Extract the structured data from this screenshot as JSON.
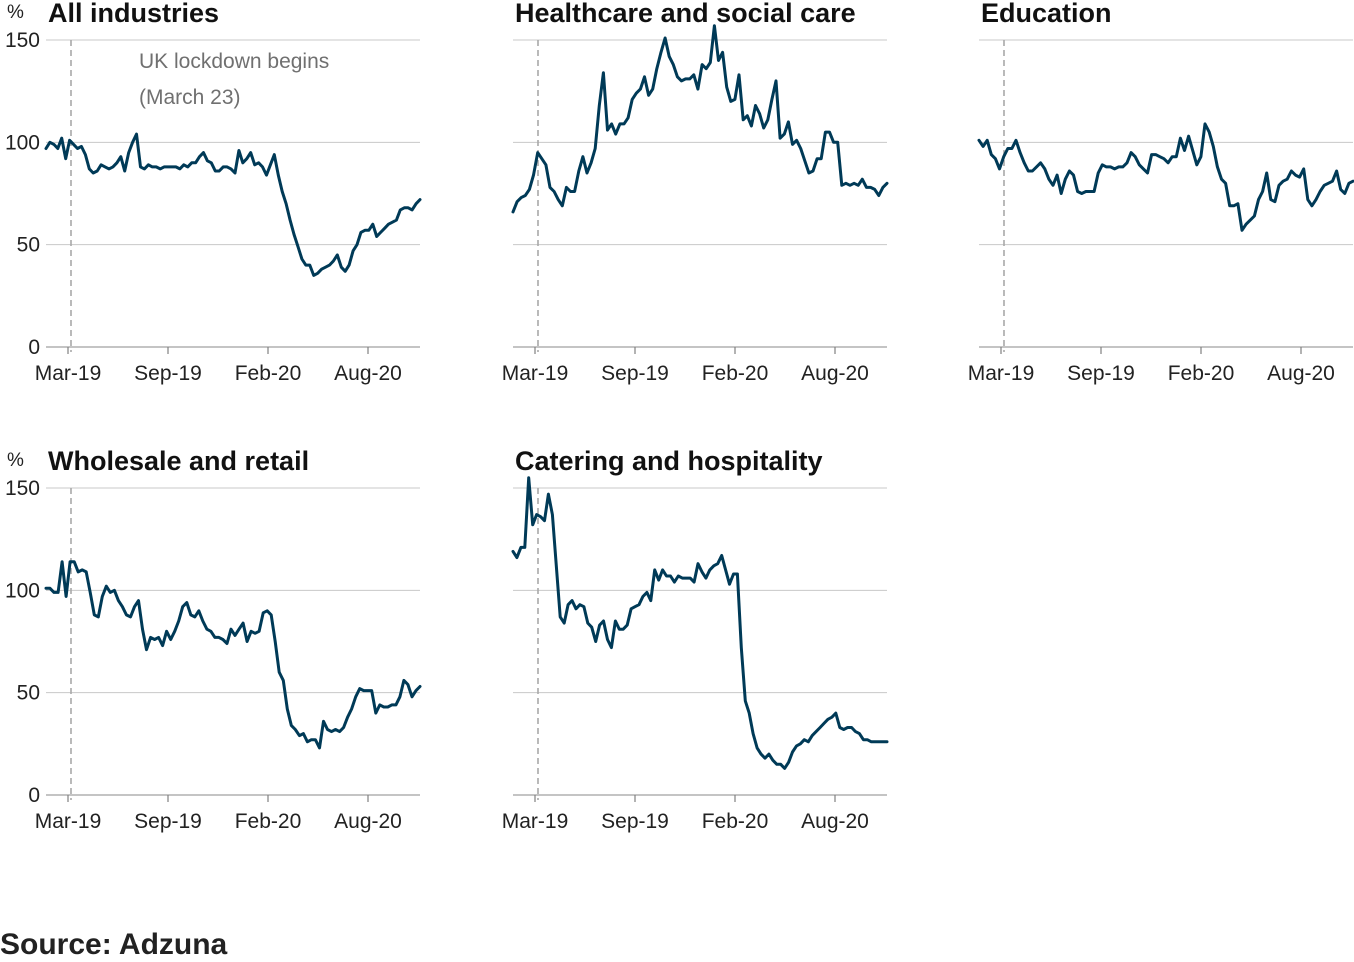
{
  "source": "Source: Adzuna",
  "unit_label": "%",
  "colors": {
    "line": "#003a57",
    "grid": "#c8c8c8",
    "lockdown": "#a8a8a8",
    "axis_text": "#222222",
    "annotation": "#707070"
  },
  "annotation": {
    "line1": "UK lockdown begins",
    "line2": "(March 23)"
  },
  "chart_data": [
    {
      "type": "line",
      "title": "All industries",
      "x_tick_labels": [
        "Mar-19",
        "Sep-19",
        "Feb-20",
        "Aug-20"
      ],
      "y_ticks": [
        0,
        50,
        100,
        150
      ],
      "ylim": [
        0,
        150
      ],
      "lockdown_marker": "March 23",
      "values": [
        97,
        100,
        99,
        97,
        102,
        92,
        101,
        99,
        97,
        98,
        94,
        87,
        85,
        86,
        89,
        88,
        87,
        88,
        90,
        93,
        86,
        95,
        100,
        104,
        88,
        87,
        89,
        88,
        88,
        87,
        88,
        88,
        88,
        88,
        87,
        89,
        88,
        90,
        90,
        93,
        95,
        91,
        90,
        86,
        86,
        88,
        88,
        87,
        85,
        96,
        90,
        92,
        95,
        89,
        90,
        88,
        84,
        89,
        94,
        84,
        76,
        70,
        62,
        55,
        49,
        43,
        40,
        40,
        35,
        36,
        38,
        39,
        40,
        42,
        45,
        39,
        37,
        40,
        47,
        50,
        56,
        57,
        57,
        60,
        54,
        56,
        58,
        60,
        61,
        62,
        67,
        68,
        68,
        67,
        70,
        72
      ]
    },
    {
      "type": "line",
      "title": "Healthcare and social care",
      "x_tick_labels": [
        "Mar-19",
        "Sep-19",
        "Feb-20",
        "Aug-20"
      ],
      "y_ticks": [
        0,
        50,
        100,
        150
      ],
      "ylim": [
        0,
        150
      ],
      "lockdown_marker": "March 23",
      "values": [
        66,
        71,
        73,
        74,
        77,
        84,
        95,
        92,
        89,
        78,
        76,
        72,
        69,
        78,
        76,
        76,
        86,
        93,
        85,
        90,
        97,
        118,
        134,
        106,
        109,
        104,
        109,
        109,
        112,
        121,
        124,
        126,
        132,
        123,
        126,
        136,
        144,
        151,
        142,
        138,
        132,
        130,
        131,
        131,
        133,
        126,
        138,
        136,
        139,
        157,
        140,
        144,
        127,
        120,
        121,
        133,
        111,
        113,
        108,
        118,
        114,
        107,
        111,
        121,
        130,
        102,
        104,
        110,
        99,
        101,
        97,
        91,
        85,
        86,
        92,
        92,
        105,
        105,
        100,
        100,
        79,
        80,
        79,
        80,
        79,
        82,
        78,
        78,
        77,
        74,
        78,
        80
      ]
    },
    {
      "type": "line",
      "title": "Education",
      "x_tick_labels": [
        "Mar-19",
        "Sep-19",
        "Feb-20",
        "Aug-20"
      ],
      "y_ticks": [
        0,
        50,
        100,
        150
      ],
      "ylim": [
        0,
        150
      ],
      "lockdown_marker": "March 23",
      "values": [
        101,
        98,
        101,
        94,
        92,
        87,
        93,
        97,
        97,
        101,
        95,
        90,
        86,
        86,
        88,
        90,
        87,
        82,
        79,
        84,
        75,
        82,
        86,
        84,
        76,
        75,
        76,
        76,
        76,
        85,
        89,
        88,
        88,
        87,
        88,
        88,
        90,
        95,
        93,
        89,
        87,
        85,
        94,
        94,
        93,
        92,
        90,
        93,
        93,
        102,
        96,
        103,
        96,
        89,
        93,
        109,
        105,
        98,
        88,
        82,
        80,
        69,
        69,
        70,
        57,
        60,
        62,
        64,
        72,
        76,
        85,
        72,
        71,
        79,
        81,
        82,
        86,
        84,
        83,
        87,
        72,
        69,
        72,
        76,
        79,
        80,
        81,
        86,
        77,
        75,
        80,
        81
      ]
    },
    {
      "type": "line",
      "title": "Wholesale and retail",
      "x_tick_labels": [
        "Mar-19",
        "Sep-19",
        "Feb-20",
        "Aug-20"
      ],
      "y_ticks": [
        0,
        50,
        100,
        150
      ],
      "ylim": [
        0,
        150
      ],
      "lockdown_marker": "March 23",
      "values": [
        101,
        101,
        99,
        99,
        114,
        97,
        114,
        114,
        109,
        110,
        109,
        99,
        88,
        87,
        97,
        102,
        99,
        100,
        95,
        92,
        88,
        87,
        92,
        95,
        81,
        71,
        77,
        76,
        77,
        73,
        80,
        76,
        80,
        85,
        92,
        94,
        88,
        87,
        90,
        85,
        81,
        80,
        77,
        77,
        76,
        74,
        81,
        78,
        81,
        84,
        75,
        80,
        79,
        80,
        89,
        90,
        88,
        75,
        60,
        56,
        42,
        34,
        32,
        29,
        30,
        26,
        27,
        27,
        23,
        36,
        32,
        31,
        32,
        31,
        33,
        38,
        42,
        48,
        52,
        51,
        51,
        51,
        40,
        44,
        43,
        43,
        44,
        44,
        48,
        56,
        54,
        48,
        51,
        53
      ]
    },
    {
      "type": "line",
      "title": "Catering and hospitality",
      "x_tick_labels": [
        "Mar-19",
        "Sep-19",
        "Feb-20",
        "Aug-20"
      ],
      "y_ticks": [
        0,
        50,
        100,
        150
      ],
      "ylim": [
        0,
        150
      ],
      "lockdown_marker": "March 23",
      "values": [
        119,
        116,
        121,
        121,
        155,
        132,
        137,
        136,
        134,
        147,
        137,
        112,
        87,
        84,
        93,
        95,
        91,
        93,
        92,
        84,
        82,
        75,
        83,
        85,
        76,
        72,
        85,
        81,
        81,
        83,
        91,
        92,
        93,
        97,
        99,
        95,
        110,
        105,
        110,
        107,
        107,
        104,
        107,
        106,
        106,
        106,
        104,
        113,
        109,
        106,
        110,
        112,
        113,
        117,
        110,
        103,
        108,
        108,
        72,
        46,
        40,
        30,
        23,
        20,
        18,
        20,
        17,
        15,
        15,
        13,
        16,
        21,
        24,
        25,
        27,
        26,
        29,
        31,
        33,
        35,
        37,
        38,
        40,
        33,
        32,
        33,
        33,
        31,
        30,
        27,
        27,
        26,
        26,
        26,
        26,
        26
      ]
    }
  ]
}
